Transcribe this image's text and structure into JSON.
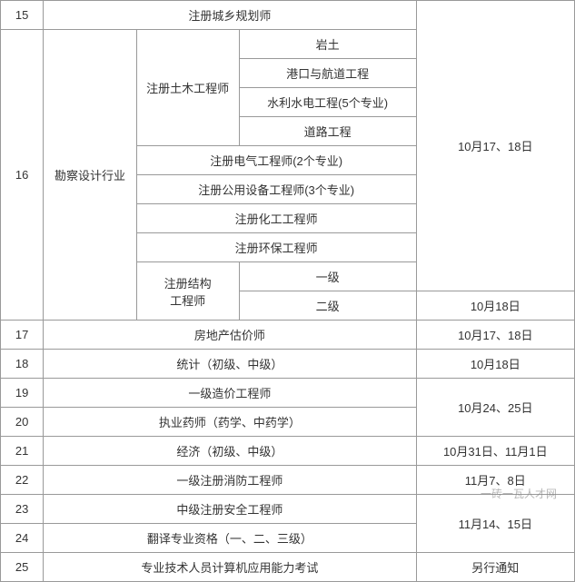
{
  "table": {
    "columns": {
      "num_width": 46,
      "cat_width": 100,
      "mid1_width": 110,
      "mid2_width": 190,
      "date_width": 170
    },
    "colors": {
      "border": "#999999",
      "text": "#333333",
      "background": "#ffffff"
    },
    "font_size": 13,
    "rows": {
      "r15_num": "15",
      "r15_title": "注册城乡规划师",
      "r16_num": "16",
      "r16_cat": "勘察设计行业",
      "r16_civil": "注册土木工程师",
      "r16_civil_a": "岩土",
      "r16_civil_b": "港口与航道工程",
      "r16_civil_c": "水利水电工程(5个专业)",
      "r16_civil_d": "道路工程",
      "r16_elec": "注册电气工程师(2个专业)",
      "r16_pub": "注册公用设备工程师(3个专业)",
      "r16_chem": "注册化工工程师",
      "r16_env": "注册环保工程师",
      "r16_struct": "注册结构\n工程师",
      "r16_struct_l1": "一级",
      "r16_struct_l2": "二级",
      "date_oct17_18": "10月17、18日",
      "date_oct18": "10月18日",
      "r17_num": "17",
      "r17_title": "房地产估价师",
      "r18_num": "18",
      "r18_title": "统计（初级、中级）",
      "r19_num": "19",
      "r19_title": "一级造价工程师",
      "r20_num": "20",
      "r20_title": "执业药师（药学、中药学）",
      "date_oct24_25": "10月24、25日",
      "r21_num": "21",
      "r21_title": "经济（初级、中级）",
      "date_oct31_nov1": "10月31日、11月1日",
      "r22_num": "22",
      "r22_title": "一级注册消防工程师",
      "date_nov7_8": "11月7、8日",
      "r23_num": "23",
      "r23_title": "中级注册安全工程师",
      "r24_num": "24",
      "r24_title": "翻译专业资格（一、二、三级）",
      "date_nov14_15": "11月14、15日",
      "r25_num": "25",
      "r25_title": "专业技术人员计算机应用能力考试",
      "date_other": "另行通知"
    }
  },
  "watermark": "一砖一瓦人才网"
}
